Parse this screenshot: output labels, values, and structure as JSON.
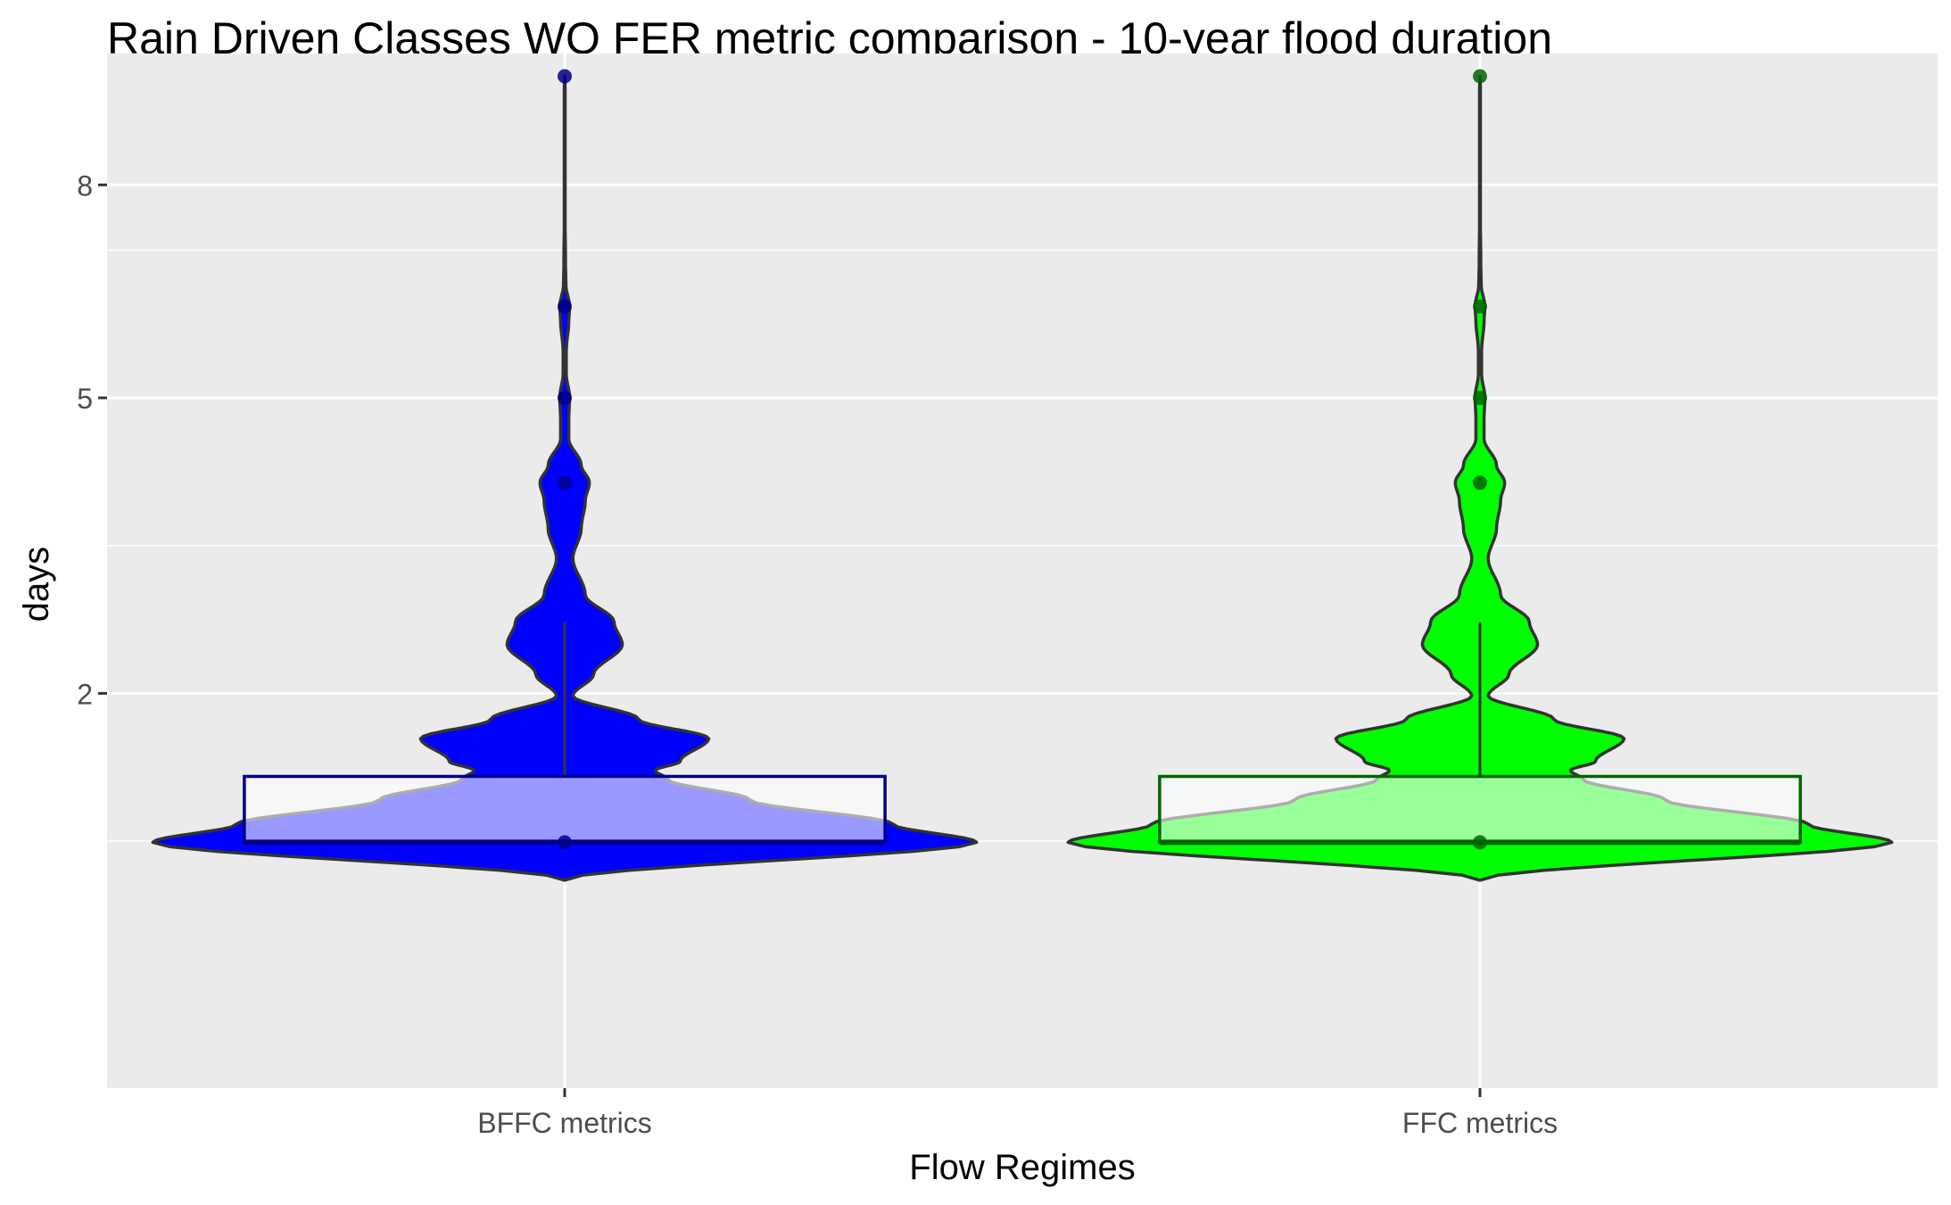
{
  "chart_data": {
    "type": "violin",
    "title": "Rain Driven Classes WO FER metric comparison  - 10-year flood duration",
    "xlabel": "Flow Regimes",
    "ylabel": "days",
    "categories": [
      "BFFC metrics",
      "FFC metrics"
    ],
    "y_ticks": [
      2,
      5,
      8
    ],
    "ylim": [
      0.1,
      10.2
    ],
    "grid": true,
    "legend": "none",
    "series": [
      {
        "category": "BFFC metrics",
        "fill_color": "#0000ff",
        "point_color": "#00008b",
        "box": {
          "min": 1,
          "q1": 1,
          "median": 1,
          "q3": 1.4,
          "max": 2.6
        },
        "points": [
          1,
          4,
          5,
          6.2,
          9.8
        ],
        "density_width": [
          [
            0.8,
            0
          ],
          [
            1.0,
            1.0
          ],
          [
            1.1,
            0.8
          ],
          [
            1.25,
            0.45
          ],
          [
            1.38,
            0.25
          ],
          [
            1.44,
            0.22
          ],
          [
            1.5,
            0.28
          ],
          [
            1.66,
            0.35
          ],
          [
            1.8,
            0.18
          ],
          [
            1.98,
            0.02
          ],
          [
            2.15,
            0.07
          ],
          [
            2.4,
            0.14
          ],
          [
            2.6,
            0.12
          ],
          [
            2.85,
            0.05
          ],
          [
            3.2,
            0.02
          ],
          [
            3.5,
            0.04
          ],
          [
            3.8,
            0.05
          ],
          [
            4,
            0.06
          ],
          [
            4.2,
            0.04
          ],
          [
            4.5,
            0.01
          ],
          [
            4.75,
            0.01
          ],
          [
            5,
            0.012
          ],
          [
            5.3,
            0.004
          ],
          [
            5.6,
            0.004
          ],
          [
            6,
            0.01
          ],
          [
            6.2,
            0.012
          ],
          [
            6.5,
            0.003
          ],
          [
            6.8,
            0.002
          ],
          [
            7.5,
            0.001
          ],
          [
            9.6,
            0.001
          ],
          [
            9.8,
            0
          ]
        ]
      },
      {
        "category": "FFC metrics",
        "fill_color": "#00ff00",
        "point_color": "#006400",
        "box": {
          "min": 1,
          "q1": 1,
          "median": 1,
          "q3": 1.4,
          "max": 2.6
        },
        "points": [
          1,
          4,
          5,
          6.2,
          9.8
        ],
        "density_width": [
          [
            0.8,
            0
          ],
          [
            1.0,
            1.0
          ],
          [
            1.1,
            0.8
          ],
          [
            1.25,
            0.45
          ],
          [
            1.38,
            0.25
          ],
          [
            1.44,
            0.22
          ],
          [
            1.5,
            0.28
          ],
          [
            1.66,
            0.35
          ],
          [
            1.8,
            0.18
          ],
          [
            1.98,
            0.02
          ],
          [
            2.15,
            0.07
          ],
          [
            2.4,
            0.14
          ],
          [
            2.6,
            0.12
          ],
          [
            2.85,
            0.05
          ],
          [
            3.2,
            0.02
          ],
          [
            3.5,
            0.04
          ],
          [
            3.8,
            0.05
          ],
          [
            4,
            0.06
          ],
          [
            4.2,
            0.04
          ],
          [
            4.5,
            0.01
          ],
          [
            4.75,
            0.01
          ],
          [
            5,
            0.012
          ],
          [
            5.3,
            0.004
          ],
          [
            5.6,
            0.004
          ],
          [
            6,
            0.01
          ],
          [
            6.2,
            0.012
          ],
          [
            6.5,
            0.003
          ],
          [
            6.8,
            0.002
          ],
          [
            7.5,
            0.001
          ],
          [
            9.6,
            0.001
          ],
          [
            9.8,
            0
          ]
        ]
      }
    ]
  }
}
